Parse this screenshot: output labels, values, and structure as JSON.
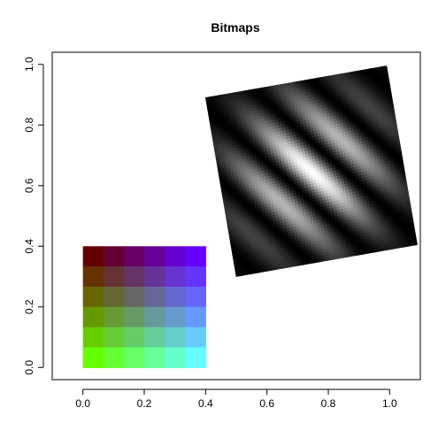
{
  "chart_data": {
    "type": "other",
    "title": "Bitmaps",
    "xlim": [
      -0.1,
      1.1
    ],
    "ylim": [
      -0.04,
      1.04
    ],
    "x_ticks": [
      0.0,
      0.2,
      0.4,
      0.6,
      0.8,
      1.0
    ],
    "x_tick_labels": [
      "0.0",
      "0.2",
      "0.4",
      "0.6",
      "0.8",
      "1.0"
    ],
    "y_ticks": [
      0.0,
      0.2,
      0.4,
      0.6,
      0.8,
      1.0
    ],
    "y_tick_labels": [
      "0.0",
      "0.2",
      "0.4",
      "0.6",
      "0.8",
      "1.0"
    ],
    "grid": false,
    "legend": "none",
    "raster_rgb": {
      "x_range": [
        0.0,
        0.4
      ],
      "y_range": [
        0.0,
        0.4
      ],
      "ncols": 6,
      "nrows": 6,
      "description_colors": {
        "top_left": "#660000",
        "top_right": "#6600ff",
        "bottom_left": "#66ff00",
        "bottom_right": "#66ffff"
      }
    },
    "raster_grayscale": {
      "corners": {
        "bottom_left": [
          0.5,
          0.3
        ],
        "bottom_right": [
          1.09,
          0.405
        ],
        "top_right": [
          0.98,
          0.99
        ],
        "top_left": [
          0.4,
          0.89
        ]
      },
      "pattern": "gabor",
      "rotation_deg": 10,
      "colors": {
        "dark": "#000000",
        "light": "#ffffff"
      }
    },
    "colors": {
      "axis": "#000000",
      "background": "#ffffff"
    }
  }
}
